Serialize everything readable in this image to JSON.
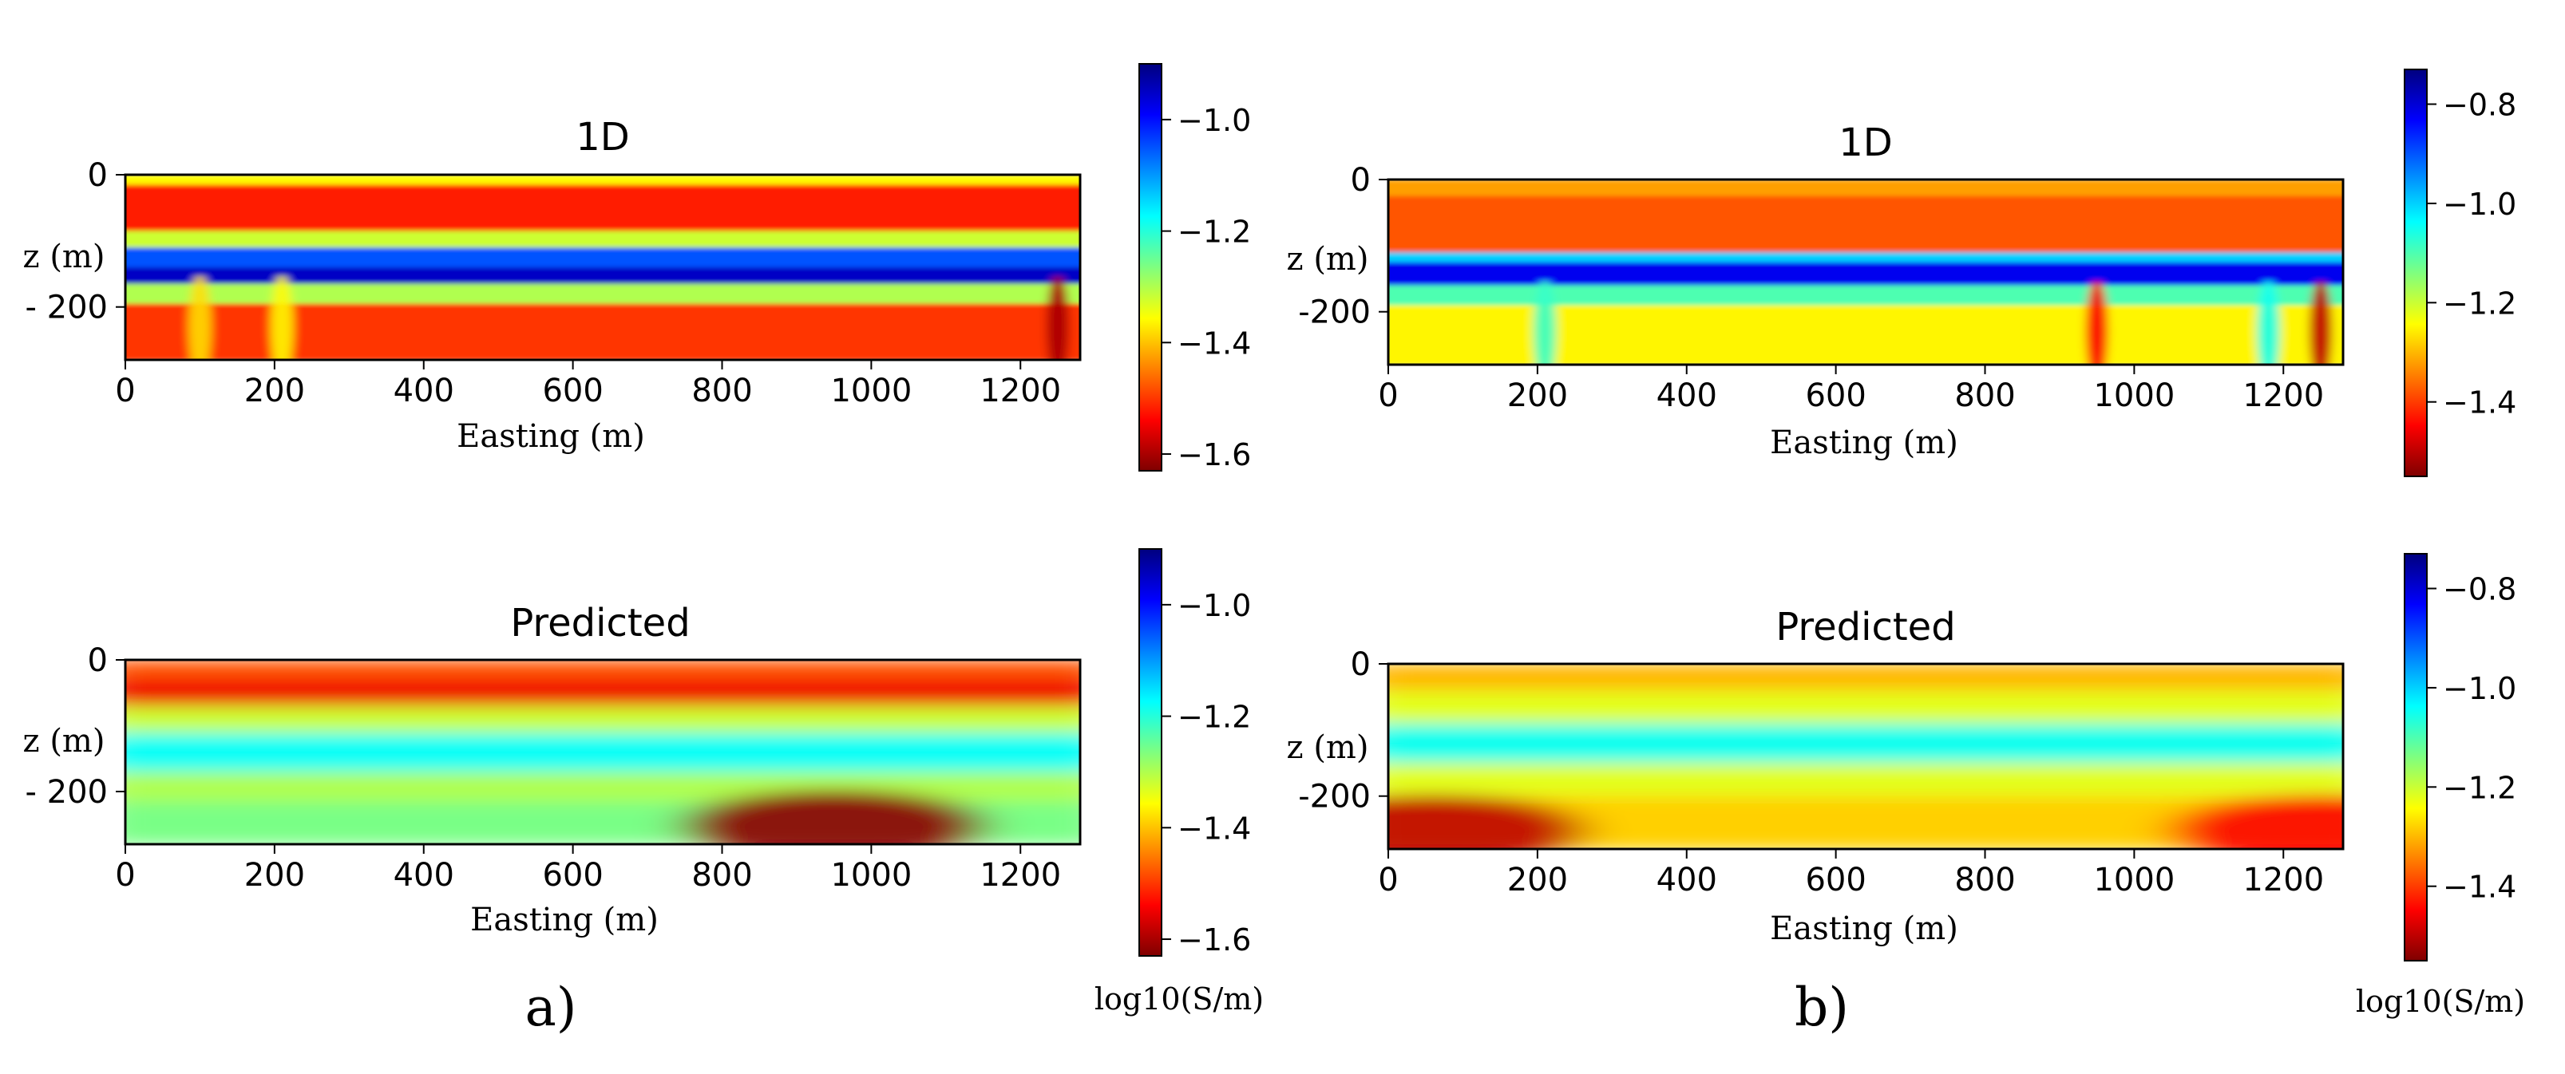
{
  "chart_data": [
    {
      "id": "a-1d",
      "type": "heatmap",
      "title": "1D",
      "xlabel": "Easting (m)",
      "ylabel": "z (m)",
      "xlim": [
        0,
        1280
      ],
      "ylim": [
        -280,
        0
      ],
      "xticks": [
        0,
        200,
        400,
        600,
        800,
        1000,
        1200
      ],
      "yticks": [
        0,
        -200
      ],
      "ytick_labels": [
        "0",
        "- 200"
      ],
      "value_label": "log10(S/m)",
      "pattern": "layered",
      "layers": [
        {
          "from": 0,
          "to": -15,
          "value": -1.36
        },
        {
          "from": -15,
          "to": -85,
          "value": -1.52
        },
        {
          "from": -85,
          "to": -110,
          "value": -1.32
        },
        {
          "from": -110,
          "to": -140,
          "value": -1.05
        },
        {
          "from": -140,
          "to": -165,
          "value": -0.95
        },
        {
          "from": -165,
          "to": -195,
          "value": -1.3
        },
        {
          "from": -195,
          "to": -280,
          "value": -1.5
        }
      ],
      "anomalies": [
        {
          "easting": 100,
          "value": -1.38
        },
        {
          "easting": 210,
          "value": -1.36
        },
        {
          "easting": 1250,
          "value": -1.6
        }
      ]
    },
    {
      "id": "a-predicted",
      "type": "heatmap",
      "title": "Predicted",
      "xlabel": "Easting (m)",
      "ylabel": "z (m)",
      "xlim": [
        0,
        1280
      ],
      "ylim": [
        -280,
        0
      ],
      "xticks": [
        0,
        200,
        400,
        600,
        800,
        1000,
        1200
      ],
      "yticks": [
        0,
        -200
      ],
      "ytick_labels": [
        "0",
        "- 200"
      ],
      "value_label": "log10(S/m)",
      "pattern": "smooth",
      "layers": [
        {
          "from": 0,
          "to": -30,
          "value": -1.48
        },
        {
          "from": -30,
          "to": -70,
          "value": -1.55
        },
        {
          "from": -70,
          "to": -110,
          "value": -1.32
        },
        {
          "from": -110,
          "to": -170,
          "value": -1.18
        },
        {
          "from": -170,
          "to": -215,
          "value": -1.3
        },
        {
          "from": -215,
          "to": -280,
          "value": -1.26
        }
      ],
      "anomalies": [
        {
          "easting": 950,
          "value": -1.62
        }
      ]
    },
    {
      "id": "b-1d",
      "type": "heatmap",
      "title": "1D",
      "xlabel": "Easting (m)",
      "ylabel": "z (m)",
      "xlim": [
        0,
        1280
      ],
      "ylim": [
        -280,
        0
      ],
      "xticks": [
        0,
        200,
        400,
        600,
        800,
        1000,
        1200
      ],
      "yticks": [
        0,
        -200
      ],
      "ytick_labels": [
        "0",
        "-200"
      ],
      "value_label": "log10(S/m)",
      "pattern": "layered",
      "layers": [
        {
          "from": 0,
          "to": -25,
          "value": -1.32
        },
        {
          "from": -25,
          "to": -110,
          "value": -1.38
        },
        {
          "from": -110,
          "to": -125,
          "value": -1.0
        },
        {
          "from": -125,
          "to": -160,
          "value": -0.82
        },
        {
          "from": -160,
          "to": -190,
          "value": -1.1
        },
        {
          "from": -190,
          "to": -280,
          "value": -1.25
        }
      ],
      "anomalies": [
        {
          "easting": 210,
          "value": -1.08
        },
        {
          "easting": 950,
          "value": -1.45
        },
        {
          "easting": 1180,
          "value": -1.05
        },
        {
          "easting": 1250,
          "value": -1.5
        }
      ]
    },
    {
      "id": "b-predicted",
      "type": "heatmap",
      "title": "Predicted",
      "xlabel": "Easting (m)",
      "ylabel": "z (m)",
      "xlim": [
        0,
        1280
      ],
      "ylim": [
        -280,
        0
      ],
      "xticks": [
        0,
        200,
        400,
        600,
        800,
        1000,
        1200
      ],
      "yticks": [
        0,
        -200
      ],
      "ytick_labels": [
        "0",
        "-200"
      ],
      "value_label": "log10(S/m)",
      "pattern": "smooth",
      "layers": [
        {
          "from": 0,
          "to": -40,
          "value": -1.3
        },
        {
          "from": -40,
          "to": -90,
          "value": -1.22
        },
        {
          "from": -90,
          "to": -150,
          "value": -1.05
        },
        {
          "from": -150,
          "to": -200,
          "value": -1.22
        },
        {
          "from": -200,
          "to": -280,
          "value": -1.28
        }
      ],
      "anomalies": [
        {
          "easting": 60,
          "value": -1.5
        },
        {
          "easting": 1250,
          "value": -1.45
        }
      ]
    }
  ],
  "colorbars": [
    {
      "id": "a",
      "range": [
        -1.63,
        -0.9
      ],
      "ticks": [
        -1.0,
        -1.2,
        -1.4,
        -1.6
      ],
      "tick_labels": [
        "−1.0",
        "−1.2",
        "−1.4",
        "−1.6"
      ],
      "colormap": "jet"
    },
    {
      "id": "b",
      "range": [
        -1.55,
        -0.73
      ],
      "ticks": [
        -0.8,
        -1.0,
        -1.2,
        -1.4
      ],
      "tick_labels": [
        "−0.8",
        "−1.0",
        "−1.2",
        "−1.4"
      ],
      "colormap": "jet"
    }
  ],
  "units_label": "log10(S/m)",
  "panel_labels": [
    "a)",
    "b)"
  ]
}
